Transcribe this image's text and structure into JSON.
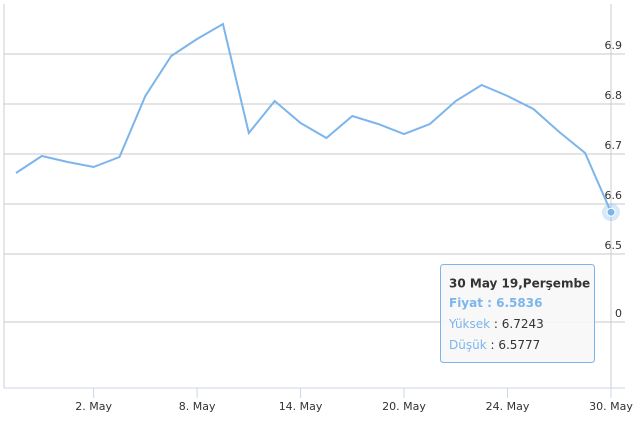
{
  "chart_data": {
    "type": "line",
    "categories": [
      null,
      null,
      null,
      "2. May",
      null,
      null,
      null,
      "8. May",
      null,
      null,
      null,
      "14. May",
      null,
      null,
      null,
      "20. May",
      null,
      null,
      null,
      "24. May",
      null,
      null,
      null,
      "30. May"
    ],
    "series": [
      {
        "color": "#7cb5ec",
        "values": [
          6.662,
          6.696,
          6.684,
          6.674,
          6.694,
          6.816,
          6.896,
          6.93,
          6.96,
          6.742,
          6.806,
          6.762,
          6.732,
          6.776,
          6.76,
          6.74,
          6.76,
          6.806,
          6.838,
          6.816,
          6.79,
          6.744,
          6.702,
          6.5836
        ]
      }
    ],
    "ylim": [
      6.5,
      7.0
    ],
    "yticks": [
      6.5,
      6.6,
      6.7,
      6.8,
      6.9
    ],
    "y2lim": [
      -1,
      1
    ],
    "y2ticks": [
      0
    ],
    "grid": true,
    "tooltip": {
      "title": "30 May 19,Perşembe",
      "rows": [
        {
          "label": "Fiyat",
          "value": "6.5836"
        },
        {
          "label": "Yüksek",
          "value": "6.7243"
        },
        {
          "label": "Düşük",
          "value": "6.5777"
        }
      ]
    }
  }
}
